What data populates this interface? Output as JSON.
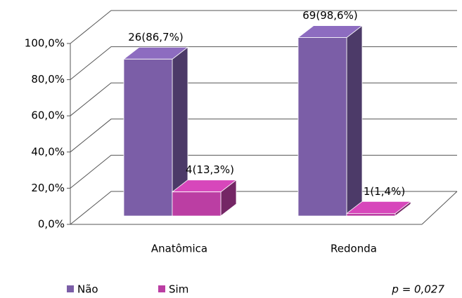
{
  "chart_data": {
    "type": "bar3d",
    "categories": [
      "Anatômica",
      "Redonda"
    ],
    "series": [
      {
        "name": "Não",
        "color": "#7b5ea7",
        "values": [
          86.7,
          98.6
        ],
        "value_labels": [
          "26(86,7%)",
          "69(98,6%)"
        ]
      },
      {
        "name": "Sim",
        "color": "#bb3ea3",
        "values": [
          13.3,
          1.4
        ],
        "value_labels": [
          "4(13,3%)",
          "1(1,4%)"
        ]
      }
    ],
    "ylim": [
      0,
      100
    ],
    "yticks": [
      {
        "value": 0,
        "label": "0,0%"
      },
      {
        "value": 20,
        "label": "20,0%"
      },
      {
        "value": 40,
        "label": "40,0%"
      },
      {
        "value": 60,
        "label": "60,0%"
      },
      {
        "value": 80,
        "label": "80,0%"
      },
      {
        "value": 100,
        "label": "100,0%"
      }
    ],
    "grid": true,
    "annotation": "p = 0,027"
  }
}
